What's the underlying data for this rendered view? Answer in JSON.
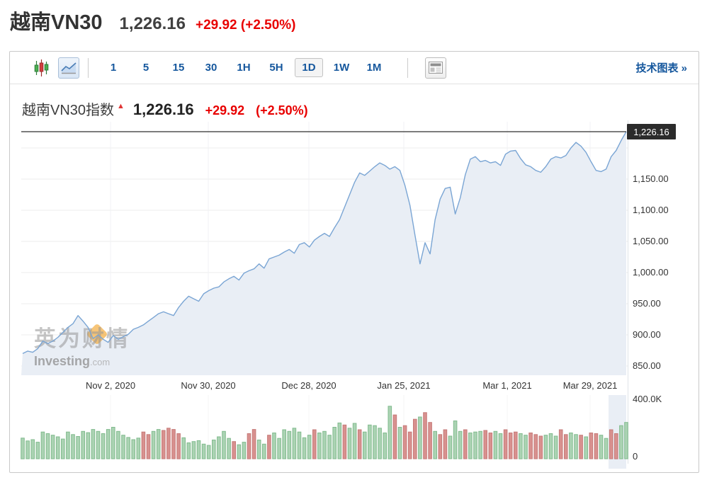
{
  "page_header": {
    "title": "越南VN30",
    "price": "1,226.16",
    "change": "+29.92 (+2.50%)"
  },
  "toolbar": {
    "chart_type_candle": "candlestick-chart",
    "chart_type_line": "line-chart",
    "timeframes": [
      {
        "label": "1",
        "selected": false
      },
      {
        "label": "5",
        "selected": false
      },
      {
        "label": "15",
        "selected": false
      },
      {
        "label": "30",
        "selected": false
      },
      {
        "label": "1H",
        "selected": false
      },
      {
        "label": "5H",
        "selected": false
      },
      {
        "label": "1D",
        "selected": true
      },
      {
        "label": "1W",
        "selected": false
      },
      {
        "label": "1M",
        "selected": false
      }
    ],
    "news_button": "news-panel",
    "tech_chart_link": "技术图表 »"
  },
  "chart_header": {
    "title": "越南VN30指数",
    "arrow": "▲",
    "price": "1,226.16",
    "change": "+29.92",
    "change_pct": "(+2.50%)"
  },
  "watermark": {
    "cn": "英为财情",
    "en": "Investing",
    "en_suffix": ".com"
  },
  "chart_data": {
    "type": "area",
    "title": "越南VN30指数",
    "last_price": 1226.16,
    "last_price_label": "1,226.16",
    "price_axis": {
      "ticks": [
        {
          "label": "1,150.00",
          "value": 1150
        },
        {
          "label": "1,100.00",
          "value": 1100
        },
        {
          "label": "1,050.00",
          "value": 1050
        },
        {
          "label": "1,000.00",
          "value": 1000
        },
        {
          "label": "950.00",
          "value": 950
        },
        {
          "label": "900.00",
          "value": 900
        },
        {
          "label": "850.00",
          "value": 850
        }
      ],
      "unlabeled_gridline_values": [
        1200
      ],
      "range": [
        850,
        1250
      ]
    },
    "volume_axis": {
      "max_label": "400.0K",
      "min_label": "0",
      "max_value_k": 400
    },
    "x_axis": {
      "labels": [
        "Nov 2, 2020",
        "Nov 30, 2020",
        "Dec 28, 2020",
        "Jan 25, 2021",
        "Mar 1, 2021",
        "Mar 29, 2021"
      ]
    },
    "series": [
      {
        "name": "VN30",
        "values": [
          870,
          874,
          872,
          878,
          890,
          886,
          890,
          896,
          904,
          912,
          918,
          931,
          922,
          912,
          894,
          900,
          893,
          888,
          899,
          893,
          897,
          901,
          909,
          912,
          916,
          922,
          928,
          934,
          937,
          934,
          931,
          944,
          954,
          962,
          958,
          954,
          966,
          971,
          975,
          977,
          985,
          990,
          994,
          988,
          999,
          1003,
          1006,
          1014,
          1007,
          1022,
          1025,
          1028,
          1033,
          1037,
          1031,
          1045,
          1048,
          1041,
          1052,
          1058,
          1063,
          1058,
          1072,
          1085,
          1105,
          1125,
          1145,
          1160,
          1156,
          1163,
          1170,
          1176,
          1172,
          1166,
          1170,
          1164,
          1140,
          1108,
          1060,
          1014,
          1048,
          1030,
          1085,
          1118,
          1135,
          1137,
          1094,
          1120,
          1157,
          1182,
          1186,
          1178,
          1180,
          1176,
          1178,
          1172,
          1190,
          1195,
          1196,
          1183,
          1173,
          1170,
          1164,
          1161,
          1170,
          1182,
          1186,
          1184,
          1188,
          1200,
          1209,
          1203,
          1193,
          1178,
          1164,
          1162,
          1166,
          1186,
          1196,
          1212,
          1226.16
        ]
      }
    ],
    "volume_k": [
      130,
      112,
      120,
      104,
      168,
      158,
      148,
      138,
      124,
      168,
      152,
      140,
      172,
      164,
      184,
      172,
      158,
      184,
      198,
      172,
      148,
      134,
      120,
      130,
      168,
      152,
      172,
      184,
      178,
      192,
      184,
      158,
      132,
      100,
      108,
      114,
      92,
      84,
      118,
      138,
      172,
      128,
      108,
      88,
      104,
      158,
      184,
      118,
      92,
      148,
      162,
      128,
      182,
      172,
      192,
      168,
      132,
      148,
      182,
      162,
      172,
      148,
      198,
      225,
      212,
      192,
      222,
      182,
      168,
      212,
      208,
      192,
      162,
      330,
      275,
      198,
      208,
      168,
      248,
      262,
      290,
      228,
      172,
      152,
      182,
      142,
      238,
      172,
      182,
      162,
      168,
      172,
      178,
      162,
      172,
      158,
      182,
      162,
      168,
      158,
      148,
      162,
      152,
      142,
      148,
      158,
      142,
      182,
      152,
      162,
      152,
      148,
      138,
      162,
      158,
      148,
      128,
      182,
      158,
      208,
      228
    ],
    "volume_directions": "uuuuuuuuuuuuuuuuuuuuuuuudduudddduuuuuuuuuuduudduuduuuuuuuuduuuuuduuduuuuuududdduddudduuuduuudduuddduuddduuudduududduudduuuuuu",
    "colors": {
      "line": "#7aa5d4",
      "area_fill": "#e9eef5",
      "up_fill": "#abd3b3",
      "up_stroke": "#82bb8e",
      "down_fill": "#d8918f",
      "down_stroke": "#c67a78",
      "accent_red": "#e80000",
      "accent_blue": "#15579d",
      "last_price_line": "#2f2f2f"
    },
    "legend": "none",
    "grid": true
  }
}
